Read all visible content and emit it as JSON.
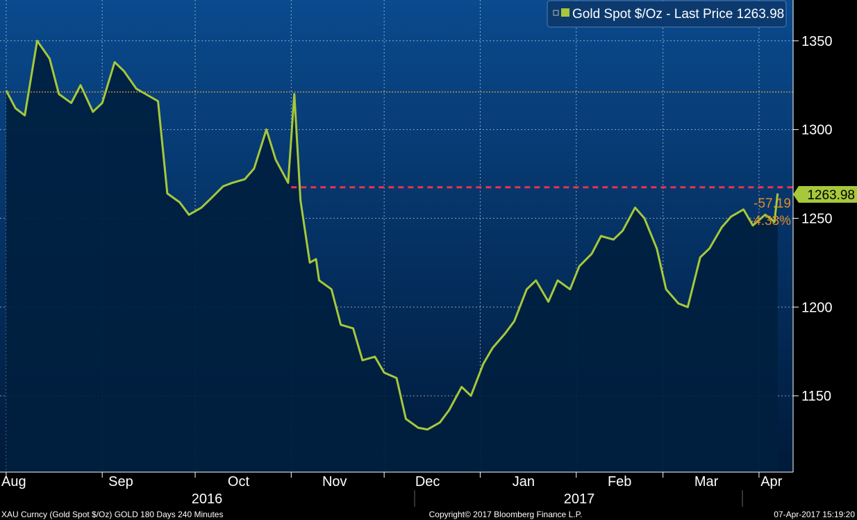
{
  "legend": {
    "label": "Gold Spot $/Oz - Last Price 1263.98"
  },
  "last_price_label": "1263.98",
  "change_labels": [
    "-57.19",
    "-4.33%"
  ],
  "footer": {
    "left": "XAU Curncy (Gold Spot  $/Oz) GOLD 180 Days 240 Minutes",
    "center": "Copyright© 2017 Bloomberg Finance L.P.",
    "right": "07-Apr-2017 15:19:20"
  },
  "colors": {
    "background_top": "#0a4a8e",
    "background_bottom": "#001a3a",
    "area_fill": "#001f3f",
    "line": "#a6c83a",
    "reference_dashed": "#e8334f",
    "reference_dotted": "#d4a03a",
    "change_text": "#e08a2a",
    "axis_text": "#ffffff"
  },
  "chart_data": {
    "type": "area",
    "series": [
      {
        "name": "Gold Spot $/Oz",
        "x": [
          "2016-08-01",
          "2016-08-04",
          "2016-08-07",
          "2016-08-11",
          "2016-08-15",
          "2016-08-18",
          "2016-08-22",
          "2016-08-25",
          "2016-08-29",
          "2016-09-01",
          "2016-09-05",
          "2016-09-08",
          "2016-09-12",
          "2016-09-15",
          "2016-09-19",
          "2016-09-22",
          "2016-09-26",
          "2016-09-29",
          "2016-10-03",
          "2016-10-06",
          "2016-10-10",
          "2016-10-13",
          "2016-10-17",
          "2016-10-20",
          "2016-10-24",
          "2016-10-27",
          "2016-10-31",
          "2016-11-02",
          "2016-11-04",
          "2016-11-07",
          "2016-11-09",
          "2016-11-10",
          "2016-11-14",
          "2016-11-17",
          "2016-11-21",
          "2016-11-24",
          "2016-11-28",
          "2016-12-01",
          "2016-12-05",
          "2016-12-08",
          "2016-12-12",
          "2016-12-15",
          "2016-12-19",
          "2016-12-22",
          "2016-12-26",
          "2016-12-29",
          "2017-01-02",
          "2017-01-05",
          "2017-01-09",
          "2017-01-12",
          "2017-01-16",
          "2017-01-19",
          "2017-01-23",
          "2017-01-26",
          "2017-01-30",
          "2017-02-02",
          "2017-02-06",
          "2017-02-09",
          "2017-02-13",
          "2017-02-16",
          "2017-02-20",
          "2017-02-23",
          "2017-02-27",
          "2017-03-02",
          "2017-03-06",
          "2017-03-09",
          "2017-03-13",
          "2017-03-16",
          "2017-03-20",
          "2017-03-23",
          "2017-03-27",
          "2017-03-30",
          "2017-04-03",
          "2017-04-06",
          "2017-04-07"
        ],
        "values": [
          1322,
          1312,
          1308,
          1350,
          1340,
          1320,
          1315,
          1325,
          1310,
          1315,
          1338,
          1333,
          1323,
          1320,
          1316,
          1264,
          1259,
          1252,
          1256,
          1261,
          1268,
          1270,
          1272,
          1278,
          1300,
          1283,
          1270,
          1320,
          1260,
          1225,
          1227,
          1215,
          1210,
          1190,
          1188,
          1170,
          1172,
          1163,
          1160,
          1137,
          1132,
          1131,
          1135,
          1142,
          1155,
          1150,
          1168,
          1177,
          1185,
          1192,
          1210,
          1215,
          1203,
          1215,
          1210,
          1223,
          1230,
          1240,
          1238,
          1243,
          1256,
          1250,
          1233,
          1210,
          1202,
          1200,
          1228,
          1233,
          1245,
          1251,
          1255,
          1246,
          1252,
          1248,
          1263.98
        ]
      }
    ],
    "x_tick_labels": [
      "Aug",
      "Sep",
      "Oct",
      "Nov",
      "Dec",
      "Jan",
      "Feb",
      "Mar",
      "Apr"
    ],
    "x_year_labels": [
      "2016",
      "2017"
    ],
    "y_ticks": [
      1150,
      1200,
      1250,
      1300,
      1350
    ],
    "ylim": [
      1107,
      1373
    ],
    "xlim": [
      "2016-07-30",
      "2017-04-12"
    ],
    "reference_lines": [
      {
        "style": "dashed",
        "value": 1267.5
      },
      {
        "style": "dotted",
        "value": 1321.17
      }
    ],
    "last_value": 1263.98,
    "change": -57.19,
    "change_pct": -4.33,
    "grid": true,
    "legend_position": "top-right",
    "y_axis_position": "right"
  }
}
